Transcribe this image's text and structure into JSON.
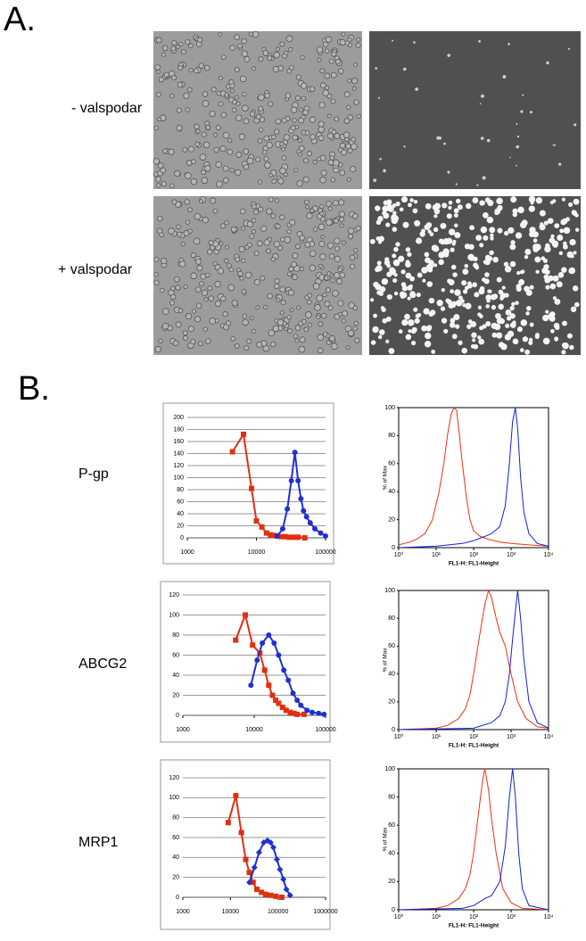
{
  "panel_a": {
    "letter": "A.",
    "rows": [
      {
        "label": "- valspodar"
      },
      {
        "label": "+ valspodar"
      }
    ]
  },
  "panel_b": {
    "letter": "B.",
    "rows": [
      {
        "label": "P-gp"
      },
      {
        "label": "ABCG2"
      },
      {
        "label": "MRP1"
      }
    ]
  },
  "chart_data": [
    {
      "type": "line",
      "xscale": "log",
      "grid": true,
      "xlim": [
        1000,
        100000
      ],
      "xticks": [
        1000,
        10000,
        100000
      ],
      "ylim": [
        0,
        200
      ],
      "yticks": [
        0,
        20,
        40,
        60,
        80,
        100,
        120,
        140,
        160,
        180,
        200
      ],
      "series": [
        {
          "color": "#e03010",
          "marker": "square",
          "x": [
            4500,
            6500,
            8500,
            10000,
            12000,
            14000,
            16000,
            18000,
            20000,
            23000,
            26000,
            30000,
            35000,
            40000,
            50000
          ],
          "values": [
            143,
            172,
            82,
            28,
            18,
            8,
            5,
            4,
            3,
            2,
            2,
            1,
            1,
            1,
            0
          ]
        },
        {
          "color": "#2030d0",
          "marker": "circle",
          "x": [
            20000,
            24000,
            28000,
            32000,
            36000,
            40000,
            44000,
            48000,
            53000,
            60000,
            70000,
            85000,
            100000
          ],
          "values": [
            3,
            15,
            48,
            95,
            142,
            95,
            65,
            45,
            35,
            25,
            15,
            8,
            3
          ]
        }
      ]
    },
    {
      "type": "line",
      "xscale": "log",
      "grid": false,
      "xlabel": "FL1-H: FL1-Height",
      "ylabel": "% of Max",
      "xlim": [
        1,
        10000
      ],
      "xticks": [
        {
          "value": 1,
          "label": "10⁰"
        },
        {
          "value": 10,
          "label": "10¹"
        },
        {
          "value": 100,
          "label": "10²"
        },
        {
          "value": 1000,
          "label": "10³"
        },
        {
          "value": 10000,
          "label": "10⁴"
        }
      ],
      "ylim": [
        0,
        100
      ],
      "yticks": [
        0,
        20,
        40,
        60,
        80,
        100
      ],
      "series": [
        {
          "color": "#f03010",
          "x": [
            1,
            2,
            3,
            5,
            8,
            12,
            16,
            20,
            25,
            30,
            35,
            40,
            50,
            65,
            80,
            100,
            150,
            250,
            500,
            1000,
            3000,
            10000
          ],
          "values": [
            2,
            4,
            6,
            10,
            20,
            40,
            60,
            80,
            95,
            100,
            98,
            85,
            60,
            35,
            20,
            12,
            8,
            6,
            4,
            3,
            2,
            1
          ]
        },
        {
          "color": "#1020e0",
          "x": [
            1,
            10,
            50,
            100,
            200,
            300,
            500,
            700,
            900,
            1100,
            1300,
            1500,
            1800,
            2200,
            3000,
            5000,
            10000
          ],
          "values": [
            0,
            1,
            3,
            5,
            8,
            10,
            15,
            30,
            60,
            90,
            100,
            85,
            50,
            25,
            10,
            3,
            1
          ]
        }
      ]
    },
    {
      "type": "line",
      "xscale": "log",
      "grid": true,
      "xlim": [
        1000,
        100000
      ],
      "xticks": [
        1000,
        10000,
        100000
      ],
      "ylim": [
        0,
        120
      ],
      "yticks": [
        0,
        20,
        40,
        60,
        80,
        100,
        120
      ],
      "series": [
        {
          "color": "#e03010",
          "marker": "square",
          "x": [
            5500,
            7500,
            9500,
            12000,
            14000,
            16000,
            18000,
            20000,
            22000,
            25000,
            28000,
            32000,
            36000,
            40000,
            50000
          ],
          "values": [
            75,
            100,
            70,
            62,
            45,
            30,
            20,
            15,
            12,
            8,
            5,
            3,
            2,
            1,
            1
          ]
        },
        {
          "color": "#2030d0",
          "marker": "circle",
          "x": [
            9000,
            11000,
            13000,
            16000,
            19000,
            22000,
            26000,
            30000,
            35000,
            40000,
            45000,
            55000,
            65000,
            80000,
            95000
          ],
          "values": [
            30,
            55,
            72,
            80,
            72,
            60,
            45,
            35,
            22,
            15,
            10,
            5,
            3,
            2,
            1
          ]
        }
      ]
    },
    {
      "type": "line",
      "xscale": "log",
      "grid": false,
      "xlabel": "FL1-H: FL1-Height",
      "ylabel": "% of Max",
      "xlim": [
        1,
        10000
      ],
      "xticks": [
        {
          "value": 1,
          "label": "10⁰"
        },
        {
          "value": 10,
          "label": "10¹"
        },
        {
          "value": 100,
          "label": "10²"
        },
        {
          "value": 1000,
          "label": "10³"
        },
        {
          "value": 10000,
          "label": "10⁴"
        }
      ],
      "ylim": [
        0,
        100
      ],
      "yticks": [
        0,
        20,
        40,
        60,
        80,
        100
      ],
      "series": [
        {
          "color": "#f03010",
          "x": [
            1,
            10,
            20,
            40,
            60,
            80,
            100,
            130,
            160,
            200,
            250,
            300,
            400,
            500,
            700,
            1000,
            1500,
            2500,
            5000,
            10000
          ],
          "values": [
            0,
            1,
            3,
            8,
            15,
            25,
            40,
            60,
            75,
            90,
            100,
            95,
            80,
            70,
            60,
            40,
            20,
            8,
            2,
            1
          ]
        },
        {
          "color": "#1020e0",
          "x": [
            1,
            100,
            300,
            500,
            700,
            900,
            1100,
            1300,
            1500,
            1800,
            2200,
            3000,
            5000,
            10000
          ],
          "values": [
            0,
            1,
            5,
            10,
            20,
            40,
            65,
            85,
            100,
            80,
            50,
            20,
            5,
            1
          ]
        }
      ]
    },
    {
      "type": "line",
      "xscale": "log",
      "grid": true,
      "xlim": [
        1000,
        1000000
      ],
      "xticks": [
        1000,
        10000,
        100000,
        1000000
      ],
      "ylim": [
        0,
        120
      ],
      "yticks": [
        0,
        20,
        40,
        60,
        80,
        100,
        120
      ],
      "series": [
        {
          "color": "#e03010",
          "marker": "square",
          "x": [
            9000,
            13000,
            17000,
            21000,
            25000,
            30000,
            36000,
            45000,
            55000,
            70000,
            90000,
            120000
          ],
          "values": [
            75,
            102,
            65,
            38,
            25,
            15,
            8,
            5,
            3,
            2,
            1,
            0
          ]
        },
        {
          "color": "#2030d0",
          "marker": "diamond",
          "x": [
            25000,
            32000,
            40000,
            50000,
            60000,
            70000,
            80000,
            95000,
            110000,
            130000,
            150000,
            180000
          ],
          "values": [
            15,
            30,
            45,
            55,
            57,
            55,
            50,
            38,
            28,
            18,
            8,
            2
          ]
        }
      ]
    },
    {
      "type": "line",
      "xscale": "log",
      "grid": false,
      "xlabel": "FL1-H: FL1-Height",
      "ylabel": "% of Max",
      "xlim": [
        1,
        10000
      ],
      "xticks": [
        {
          "value": 1,
          "label": "10⁰"
        },
        {
          "value": 10,
          "label": "10¹"
        },
        {
          "value": 100,
          "label": "10²"
        },
        {
          "value": 1000,
          "label": "10³"
        },
        {
          "value": 10000,
          "label": "10⁴"
        }
      ],
      "ylim": [
        0,
        100
      ],
      "yticks": [
        0,
        20,
        40,
        60,
        80,
        100
      ],
      "series": [
        {
          "color": "#f03010",
          "x": [
            1,
            10,
            20,
            40,
            60,
            80,
            100,
            130,
            170,
            200,
            250,
            300,
            400,
            600,
            1000,
            2000,
            10000
          ],
          "values": [
            0,
            1,
            3,
            8,
            15,
            25,
            40,
            65,
            90,
            100,
            85,
            65,
            40,
            15,
            5,
            1,
            0
          ]
        },
        {
          "color": "#1020e0",
          "x": [
            1,
            50,
            100,
            200,
            300,
            500,
            700,
            900,
            1100,
            1300,
            1600,
            2000,
            3000,
            10000
          ],
          "values": [
            0,
            1,
            3,
            8,
            10,
            20,
            45,
            80,
            100,
            80,
            40,
            15,
            3,
            0
          ]
        }
      ]
    }
  ]
}
